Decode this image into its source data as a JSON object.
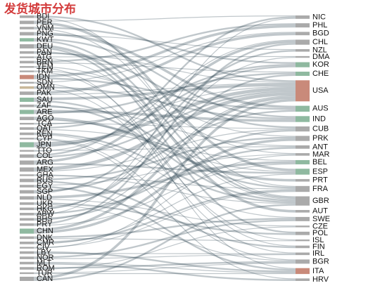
{
  "chart_data": {
    "type": "sankey",
    "title": "发货城市分布",
    "link_color": "#2f4554",
    "source_nodes": [
      {
        "name": "BDI",
        "color": "#aaaaaa"
      },
      {
        "name": "PER",
        "color": "#aaaaaa"
      },
      {
        "name": "VNM",
        "color": "#aaaaaa"
      },
      {
        "name": "PNG",
        "color": "#aaaaaa"
      },
      {
        "name": "KWT",
        "color": "#8fb9a0"
      },
      {
        "name": "DEU",
        "color": "#aaaaaa"
      },
      {
        "name": "PAN",
        "color": "#aaaaaa"
      },
      {
        "name": "ATG",
        "color": "#aaaaaa"
      },
      {
        "name": "BRN",
        "color": "#aaaaaa"
      },
      {
        "name": "YEM",
        "color": "#aaaaaa"
      },
      {
        "name": "TKM",
        "color": "#aaaaaa"
      },
      {
        "name": "IDN",
        "color": "#c98a7a"
      },
      {
        "name": "SDN",
        "color": "#aaaaaa"
      },
      {
        "name": "OMN",
        "color": "#c9b89a"
      },
      {
        "name": "PAK",
        "color": "#aaaaaa"
      },
      {
        "name": "SAU",
        "color": "#8fb9a0"
      },
      {
        "name": "ZAF",
        "color": "#aaaaaa"
      },
      {
        "name": "ARE",
        "color": "#8fb9a0"
      },
      {
        "name": "AGO",
        "color": "#aaaaaa"
      },
      {
        "name": "TCA",
        "color": "#aaaaaa"
      },
      {
        "name": "QAT",
        "color": "#aaaaaa"
      },
      {
        "name": "KEN",
        "color": "#aaaaaa"
      },
      {
        "name": "CYP",
        "color": "#aaaaaa"
      },
      {
        "name": "JPN",
        "color": "#8fb9a0"
      },
      {
        "name": "TTO",
        "color": "#aaaaaa"
      },
      {
        "name": "COL",
        "color": "#aaaaaa"
      },
      {
        "name": "ARG",
        "color": "#aaaaaa"
      },
      {
        "name": "MEX",
        "color": "#aaaaaa"
      },
      {
        "name": "GHA",
        "color": "#aaaaaa"
      },
      {
        "name": "RUS",
        "color": "#aaaaaa"
      },
      {
        "name": "EGY",
        "color": "#aaaaaa"
      },
      {
        "name": "SGP",
        "color": "#aaaaaa"
      },
      {
        "name": "NLD",
        "color": "#aaaaaa"
      },
      {
        "name": "UKR",
        "color": "#aaaaaa"
      },
      {
        "name": "HKG",
        "color": "#aaaaaa"
      },
      {
        "name": "ABW",
        "color": "#aaaaaa"
      },
      {
        "name": "BHS",
        "color": "#aaaaaa"
      },
      {
        "name": "PRY",
        "color": "#aaaaaa"
      },
      {
        "name": "CHN",
        "color": "#8fb9a0"
      },
      {
        "name": "DNK",
        "color": "#aaaaaa"
      },
      {
        "name": "CMR",
        "color": "#aaaaaa"
      },
      {
        "name": "CIV",
        "color": "#aaaaaa"
      },
      {
        "name": "LBY",
        "color": "#aaaaaa"
      },
      {
        "name": "NOR",
        "color": "#aaaaaa"
      },
      {
        "name": "MLT",
        "color": "#aaaaaa"
      },
      {
        "name": "ROM",
        "color": "#aaaaaa"
      },
      {
        "name": "TUR",
        "color": "#aaaaaa"
      },
      {
        "name": "CAN",
        "color": "#aaaaaa"
      }
    ],
    "target_nodes": [
      {
        "name": "NIC",
        "color": "#aaaaaa"
      },
      {
        "name": "PHL",
        "color": "#aaaaaa"
      },
      {
        "name": "BGD",
        "color": "#aaaaaa"
      },
      {
        "name": "CHL",
        "color": "#aaaaaa"
      },
      {
        "name": "NZL",
        "color": "#aaaaaa"
      },
      {
        "name": "DMA",
        "color": "#aaaaaa"
      },
      {
        "name": "KOR",
        "color": "#8fb9a0"
      },
      {
        "name": "CHE",
        "color": "#8fb9a0"
      },
      {
        "name": "USA",
        "color": "#c98a7a"
      },
      {
        "name": "AUS",
        "color": "#8fb9a0"
      },
      {
        "name": "IND",
        "color": "#8fb9a0"
      },
      {
        "name": "CUB",
        "color": "#aaaaaa"
      },
      {
        "name": "PRK",
        "color": "#aaaaaa"
      },
      {
        "name": "ANT",
        "color": "#aaaaaa"
      },
      {
        "name": "MAR",
        "color": "#aaaaaa"
      },
      {
        "name": "BEL",
        "color": "#8fb9a0"
      },
      {
        "name": "ESP",
        "color": "#8fb9a0"
      },
      {
        "name": "PRT",
        "color": "#aaaaaa"
      },
      {
        "name": "FRA",
        "color": "#aaaaaa"
      },
      {
        "name": "GBR",
        "color": "#aaaaaa"
      },
      {
        "name": "AUT",
        "color": "#aaaaaa"
      },
      {
        "name": "SWE",
        "color": "#aaaaaa"
      },
      {
        "name": "CZE",
        "color": "#aaaaaa"
      },
      {
        "name": "POL",
        "color": "#aaaaaa"
      },
      {
        "name": "ISL",
        "color": "#aaaaaa"
      },
      {
        "name": "FIN",
        "color": "#aaaaaa"
      },
      {
        "name": "IRL",
        "color": "#aaaaaa"
      },
      {
        "name": "BGR",
        "color": "#aaaaaa"
      },
      {
        "name": "ITA",
        "color": "#c98a7a"
      },
      {
        "name": "HRV",
        "color": "#aaaaaa"
      }
    ],
    "links": [
      {
        "source": "BDI",
        "target": "USA",
        "value": 2
      },
      {
        "source": "BDI",
        "target": "GBR",
        "value": 1
      },
      {
        "source": "PER",
        "target": "NIC",
        "value": 1
      },
      {
        "source": "PER",
        "target": "ESP",
        "value": 3
      },
      {
        "source": "VNM",
        "target": "KOR",
        "value": 2
      },
      {
        "source": "VNM",
        "target": "FRA",
        "value": 1
      },
      {
        "source": "PNG",
        "target": "AUS",
        "value": 3
      },
      {
        "source": "PNG",
        "target": "NZL",
        "value": 1
      },
      {
        "source": "KWT",
        "target": "IND",
        "value": 2
      },
      {
        "source": "KWT",
        "target": "GBR",
        "value": 2
      },
      {
        "source": "DEU",
        "target": "AUT",
        "value": 3
      },
      {
        "source": "DEU",
        "target": "POL",
        "value": 2
      },
      {
        "source": "PAN",
        "target": "CUB",
        "value": 2
      },
      {
        "source": "PAN",
        "target": "USA",
        "value": 1
      },
      {
        "source": "ATG",
        "target": "DMA",
        "value": 1
      },
      {
        "source": "ATG",
        "target": "GBR",
        "value": 1
      },
      {
        "source": "BRN",
        "target": "PHL",
        "value": 2
      },
      {
        "source": "BRN",
        "target": "CHE",
        "value": 1
      },
      {
        "source": "YEM",
        "target": "MAR",
        "value": 1
      },
      {
        "source": "YEM",
        "target": "ITA",
        "value": 1
      },
      {
        "source": "TKM",
        "target": "PRK",
        "value": 1
      },
      {
        "source": "TKM",
        "target": "FIN",
        "value": 1
      },
      {
        "source": "IDN",
        "target": "PHL",
        "value": 3
      },
      {
        "source": "IDN",
        "target": "AUS",
        "value": 2
      },
      {
        "source": "SDN",
        "target": "BGD",
        "value": 1
      },
      {
        "source": "SDN",
        "target": "ISL",
        "value": 1
      },
      {
        "source": "OMN",
        "target": "IND",
        "value": 2
      },
      {
        "source": "OMN",
        "target": "IRL",
        "value": 1
      },
      {
        "source": "PAK",
        "target": "BGD",
        "value": 3
      },
      {
        "source": "PAK",
        "target": "USA",
        "value": 1
      },
      {
        "source": "SAU",
        "target": "USA",
        "value": 3
      },
      {
        "source": "SAU",
        "target": "FRA",
        "value": 2
      },
      {
        "source": "ZAF",
        "target": "GBR",
        "value": 2
      },
      {
        "source": "ZAF",
        "target": "ANT",
        "value": 1
      },
      {
        "source": "ARE",
        "target": "IND",
        "value": 3
      },
      {
        "source": "ARE",
        "target": "CHE",
        "value": 2
      },
      {
        "source": "AGO",
        "target": "PRT",
        "value": 3
      },
      {
        "source": "AGO",
        "target": "ESP",
        "value": 1
      },
      {
        "source": "TCA",
        "target": "CUB",
        "value": 1
      },
      {
        "source": "TCA",
        "target": "USA",
        "value": 1
      },
      {
        "source": "QAT",
        "target": "KOR",
        "value": 2
      },
      {
        "source": "QAT",
        "target": "BEL",
        "value": 1
      },
      {
        "source": "KEN",
        "target": "GBR",
        "value": 2
      },
      {
        "source": "KEN",
        "target": "SWE",
        "value": 1
      },
      {
        "source": "CYP",
        "target": "BGR",
        "value": 1
      },
      {
        "source": "CYP",
        "target": "HRV",
        "value": 1
      },
      {
        "source": "JPN",
        "target": "USA",
        "value": 4
      },
      {
        "source": "JPN",
        "target": "KOR",
        "value": 2
      },
      {
        "source": "TTO",
        "target": "ANT",
        "value": 1
      },
      {
        "source": "TTO",
        "target": "CHL",
        "value": 1
      },
      {
        "source": "COL",
        "target": "NIC",
        "value": 2
      },
      {
        "source": "COL",
        "target": "USA",
        "value": 2
      },
      {
        "source": "ARG",
        "target": "CHL",
        "value": 3
      },
      {
        "source": "ARG",
        "target": "ESP",
        "value": 2
      },
      {
        "source": "MEX",
        "target": "USA",
        "value": 4
      },
      {
        "source": "MEX",
        "target": "CUB",
        "value": 1
      },
      {
        "source": "GHA",
        "target": "GBR",
        "value": 1
      },
      {
        "source": "GHA",
        "target": "FRA",
        "value": 1
      },
      {
        "source": "RUS",
        "target": "PRK",
        "value": 2
      },
      {
        "source": "RUS",
        "target": "FIN",
        "value": 2
      },
      {
        "source": "EGY",
        "target": "MAR",
        "value": 1
      },
      {
        "source": "EGY",
        "target": "ITA",
        "value": 2
      },
      {
        "source": "SGP",
        "target": "AUS",
        "value": 2
      },
      {
        "source": "SGP",
        "target": "NZL",
        "value": 2
      },
      {
        "source": "NLD",
        "target": "BEL",
        "value": 3
      },
      {
        "source": "NLD",
        "target": "CZE",
        "value": 1
      },
      {
        "source": "UKR",
        "target": "POL",
        "value": 2
      },
      {
        "source": "UKR",
        "target": "BGR",
        "value": 1
      },
      {
        "source": "HKG",
        "target": "CHE",
        "value": 2
      },
      {
        "source": "HKG",
        "target": "DMA",
        "value": 1
      },
      {
        "source": "ABW",
        "target": "ANT",
        "value": 2
      },
      {
        "source": "ABW",
        "target": "NIC",
        "value": 1
      },
      {
        "source": "BHS",
        "target": "CUB",
        "value": 2
      },
      {
        "source": "BHS",
        "target": "USA",
        "value": 1
      },
      {
        "source": "PRY",
        "target": "CHL",
        "value": 2
      },
      {
        "source": "PRY",
        "target": "BEL",
        "value": 1
      },
      {
        "source": "CHN",
        "target": "USA",
        "value": 3
      },
      {
        "source": "CHN",
        "target": "PRK",
        "value": 3
      },
      {
        "source": "DNK",
        "target": "SWE",
        "value": 2
      },
      {
        "source": "DNK",
        "target": "ISL",
        "value": 1
      },
      {
        "source": "CMR",
        "target": "FRA",
        "value": 2
      },
      {
        "source": "CMR",
        "target": "ESP",
        "value": 1
      },
      {
        "source": "CIV",
        "target": "FRA",
        "value": 1
      },
      {
        "source": "CIV",
        "target": "MAR",
        "value": 1
      },
      {
        "source": "LBY",
        "target": "ITA",
        "value": 2
      },
      {
        "source": "LBY",
        "target": "IRL",
        "value": 1
      },
      {
        "source": "NOR",
        "target": "SWE",
        "value": 2
      },
      {
        "source": "NOR",
        "target": "IRL",
        "value": 1
      },
      {
        "source": "MLT",
        "target": "ITA",
        "value": 1
      },
      {
        "source": "MLT",
        "target": "HRV",
        "value": 2
      },
      {
        "source": "ROM",
        "target": "BGR",
        "value": 2
      },
      {
        "source": "ROM",
        "target": "CZE",
        "value": 1
      },
      {
        "source": "TUR",
        "target": "BGR",
        "value": 1
      },
      {
        "source": "TUR",
        "target": "ITA",
        "value": 1
      },
      {
        "source": "CAN",
        "target": "USA",
        "value": 3
      },
      {
        "source": "CAN",
        "target": "GBR",
        "value": 2
      }
    ]
  }
}
